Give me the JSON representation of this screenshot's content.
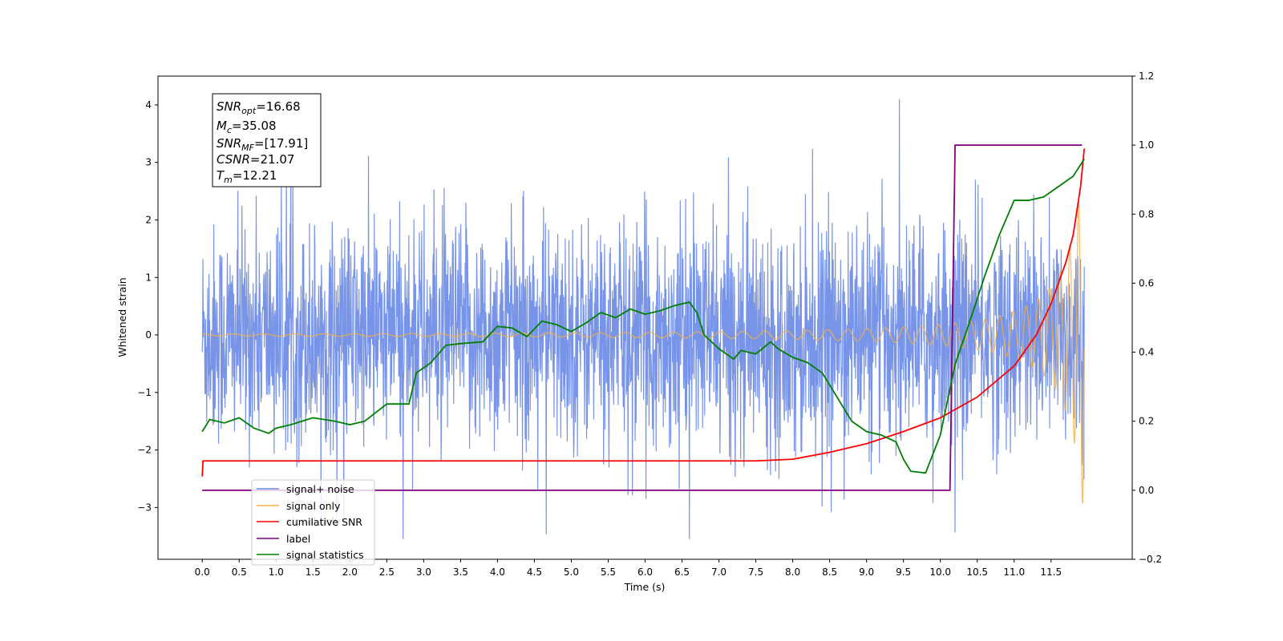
{
  "chart_data": {
    "type": "line",
    "xlabel": "Time (s)",
    "ylabel": "Whitened strain",
    "xlim": [
      -0.6,
      12.6
    ],
    "ylim": [
      -3.9,
      4.5
    ],
    "y2lim": [
      -0.2,
      1.2
    ],
    "x_ticks": [
      "0.0",
      "0.5",
      "1.0",
      "1.5",
      "2.0",
      "2.5",
      "3.0",
      "3.5",
      "4.0",
      "4.5",
      "5.0",
      "5.5",
      "6.0",
      "6.5",
      "7.0",
      "7.5",
      "8.0",
      "8.5",
      "9.0",
      "9.5",
      "10.0",
      "10.5",
      "11.0",
      "11.5"
    ],
    "y_ticks": [
      "−3",
      "−2",
      "−1",
      "0",
      "1",
      "2",
      "3",
      "4"
    ],
    "y2_ticks": [
      "−0.2",
      "0.0",
      "0.2",
      "0.4",
      "0.6",
      "0.8",
      "1.0",
      "1.2"
    ],
    "annotation": {
      "lines": [
        {
          "base": "SNR",
          "sub": "opt",
          "value": "=16.68"
        },
        {
          "base": "M",
          "sub": "c",
          "value": "=35.08"
        },
        {
          "base": "SNR",
          "sub": "MF",
          "value": "=[17.91]"
        },
        {
          "base": "CSNR",
          "sub": "",
          "value": "=21.07"
        },
        {
          "base": "T",
          "sub": "m",
          "value": "=12.21"
        }
      ]
    },
    "legend": {
      "placement": "lower-left",
      "entries": [
        "signal+ noise",
        "signal only",
        "cumilative SNR",
        "label",
        "signal statistics"
      ],
      "ghost_entries": [
        "signal only",
        "label"
      ]
    },
    "series": [
      {
        "name": "signal+ noise",
        "color": "#6d8be6",
        "axis": "left",
        "kind": "noise",
        "std": 0.95,
        "t_end": 11.95
      },
      {
        "name": "signal only",
        "color": "#f5b041",
        "axis": "left",
        "kind": "chirp",
        "tc": 12.21,
        "amp_end": 3.3,
        "t_end": 11.95
      },
      {
        "name": "cumilative SNR",
        "color": "#ff0000",
        "axis": "right",
        "x": [
          0.0,
          0.01,
          0.05,
          7.0,
          7.5,
          8.0,
          8.5,
          9.0,
          9.5,
          10.0,
          10.5,
          11.0,
          11.3,
          11.5,
          11.7,
          11.8,
          11.9,
          11.95
        ],
        "y": [
          0.04,
          0.085,
          0.085,
          0.085,
          0.085,
          0.09,
          0.11,
          0.135,
          0.17,
          0.21,
          0.27,
          0.36,
          0.45,
          0.54,
          0.66,
          0.74,
          0.88,
          0.99
        ]
      },
      {
        "name": "label",
        "color": "#800080",
        "axis": "right",
        "x": [
          0.0,
          10.13,
          10.2,
          11.92
        ],
        "y": [
          0.0,
          0.0,
          1.0,
          1.0
        ]
      },
      {
        "name": "signal statistics",
        "color": "#008000",
        "axis": "right",
        "x": [
          0.0,
          0.1,
          0.3,
          0.5,
          0.7,
          0.9,
          1.0,
          1.2,
          1.5,
          1.8,
          2.0,
          2.2,
          2.5,
          2.8,
          2.9,
          3.1,
          3.3,
          3.5,
          3.8,
          4.0,
          4.2,
          4.4,
          4.6,
          4.8,
          5.0,
          5.2,
          5.4,
          5.6,
          5.8,
          6.0,
          6.2,
          6.4,
          6.6,
          6.7,
          6.8,
          7.0,
          7.2,
          7.3,
          7.5,
          7.7,
          7.8,
          8.0,
          8.2,
          8.4,
          8.6,
          8.8,
          9.0,
          9.2,
          9.4,
          9.5,
          9.6,
          9.8,
          10.0,
          10.2,
          10.4,
          10.6,
          10.8,
          11.0,
          11.2,
          11.4,
          11.6,
          11.8,
          11.95
        ],
        "y": [
          0.17,
          0.205,
          0.195,
          0.21,
          0.18,
          0.165,
          0.18,
          0.19,
          0.21,
          0.2,
          0.19,
          0.2,
          0.25,
          0.25,
          0.34,
          0.37,
          0.42,
          0.425,
          0.43,
          0.475,
          0.47,
          0.445,
          0.49,
          0.48,
          0.46,
          0.485,
          0.515,
          0.5,
          0.525,
          0.51,
          0.52,
          0.535,
          0.545,
          0.515,
          0.45,
          0.41,
          0.38,
          0.405,
          0.395,
          0.43,
          0.41,
          0.385,
          0.37,
          0.34,
          0.27,
          0.2,
          0.17,
          0.16,
          0.14,
          0.09,
          0.055,
          0.05,
          0.16,
          0.365,
          0.49,
          0.62,
          0.74,
          0.84,
          0.84,
          0.85,
          0.88,
          0.91,
          0.96
        ]
      }
    ]
  }
}
